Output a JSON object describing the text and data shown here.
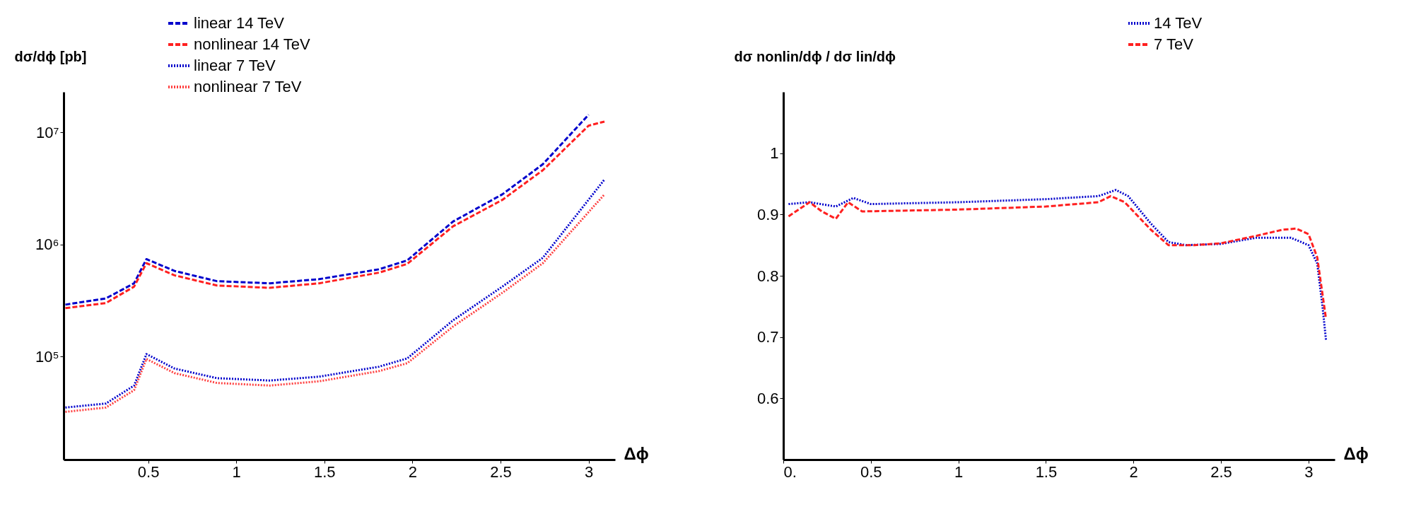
{
  "chart_data": [
    {
      "type": "line",
      "ylabel": "dσ/dϕ [pb]",
      "xlabel": "Δϕ",
      "log": "y",
      "legend": "top",
      "grid": false,
      "xlim": [
        0.02,
        3.15
      ],
      "xticks": [
        0.5,
        1,
        1.5,
        2,
        2.5,
        3
      ],
      "ylim": [
        12000,
        23000000
      ],
      "yticks": [
        {
          "value": 100000,
          "label": "10⁵"
        },
        {
          "value": 1000000,
          "label": "10⁶"
        },
        {
          "value": 10000000,
          "label": "10⁷"
        }
      ],
      "x": [
        0.03,
        0.26,
        0.42,
        0.49,
        0.65,
        0.89,
        1.19,
        1.47,
        1.81,
        1.97,
        2.23,
        2.51,
        2.74,
        3.0
      ],
      "series": [
        {
          "name": "linear 14 TeV",
          "color": "#0000cc",
          "line_style": "dashed",
          "values": [
            290000,
            330000,
            450000,
            740000,
            580000,
            470000,
            450000,
            490000,
            600000,
            720000,
            1600000,
            2800000,
            5200000,
            14400000
          ]
        },
        {
          "name": "nonlinear 14 TeV",
          "color": "#ff2020",
          "line_style": "dashed",
          "x": [
            0.03,
            0.26,
            0.42,
            0.49,
            0.65,
            0.89,
            1.19,
            1.47,
            1.81,
            1.97,
            2.23,
            2.51,
            2.74,
            3.0,
            3.09
          ],
          "values": [
            270000,
            300000,
            420000,
            680000,
            530000,
            430000,
            410000,
            450000,
            560000,
            670000,
            1450000,
            2500000,
            4600000,
            11500000,
            12500000
          ]
        },
        {
          "name": "linear 7 TeV",
          "color": "#0000cc",
          "line_style": "dotted",
          "x": [
            0.03,
            0.26,
            0.42,
            0.49,
            0.65,
            0.89,
            1.19,
            1.47,
            1.81,
            1.97,
            2.23,
            2.51,
            2.74,
            3.09
          ],
          "values": [
            35000,
            38000,
            55000,
            105000,
            78000,
            64000,
            61000,
            66000,
            81000,
            96000,
            210000,
            420000,
            760000,
            3800000
          ]
        },
        {
          "name": "nonlinear 7 TeV",
          "color": "#ff4040",
          "line_style": "dotted",
          "x": [
            0.03,
            0.26,
            0.42,
            0.49,
            0.65,
            0.89,
            1.19,
            1.47,
            1.81,
            1.97,
            2.23,
            2.51,
            2.74,
            3.09
          ],
          "values": [
            32000,
            35000,
            50000,
            95000,
            71000,
            58000,
            55000,
            60000,
            74000,
            87000,
            185000,
            370000,
            680000,
            2800000
          ]
        }
      ]
    },
    {
      "type": "line",
      "ylabel": "dσ nonlin/dϕ / dσ lin/dϕ",
      "xlabel": "Δϕ",
      "legend": "top right",
      "grid": false,
      "xlim": [
        0,
        3.15
      ],
      "xticks": [
        {
          "value": 0,
          "label": "0."
        },
        0.5,
        1,
        1.5,
        2,
        2.5,
        3
      ],
      "ylim": [
        0.5,
        1.1
      ],
      "yticks": [
        0.6,
        0.7,
        0.8,
        0.9,
        1
      ],
      "series": [
        {
          "name": "14 TeV",
          "color": "#0000cc",
          "line_style": "dotted",
          "x": [
            0.03,
            0.15,
            0.3,
            0.4,
            0.5,
            1,
            1.5,
            1.8,
            1.9,
            1.97,
            2.1,
            2.2,
            2.3,
            2.5,
            2.7,
            2.9,
            3.0,
            3.05,
            3.08,
            3.1
          ],
          "values": [
            0.917,
            0.92,
            0.913,
            0.927,
            0.917,
            0.92,
            0.925,
            0.93,
            0.94,
            0.93,
            0.885,
            0.855,
            0.85,
            0.852,
            0.862,
            0.862,
            0.85,
            0.82,
            0.75,
            0.695
          ]
        },
        {
          "name": "7 TeV",
          "color": "#ff2020",
          "line_style": "dashed",
          "x": [
            0.03,
            0.15,
            0.22,
            0.3,
            0.37,
            0.45,
            1,
            1.5,
            1.8,
            1.87,
            1.95,
            2.1,
            2.2,
            2.35,
            2.5,
            2.7,
            2.85,
            2.93,
            3.0,
            3.05,
            3.08,
            3.1
          ],
          "values": [
            0.897,
            0.92,
            0.905,
            0.893,
            0.92,
            0.905,
            0.908,
            0.913,
            0.92,
            0.93,
            0.92,
            0.875,
            0.85,
            0.85,
            0.853,
            0.865,
            0.875,
            0.877,
            0.868,
            0.83,
            0.77,
            0.73
          ]
        }
      ]
    }
  ]
}
